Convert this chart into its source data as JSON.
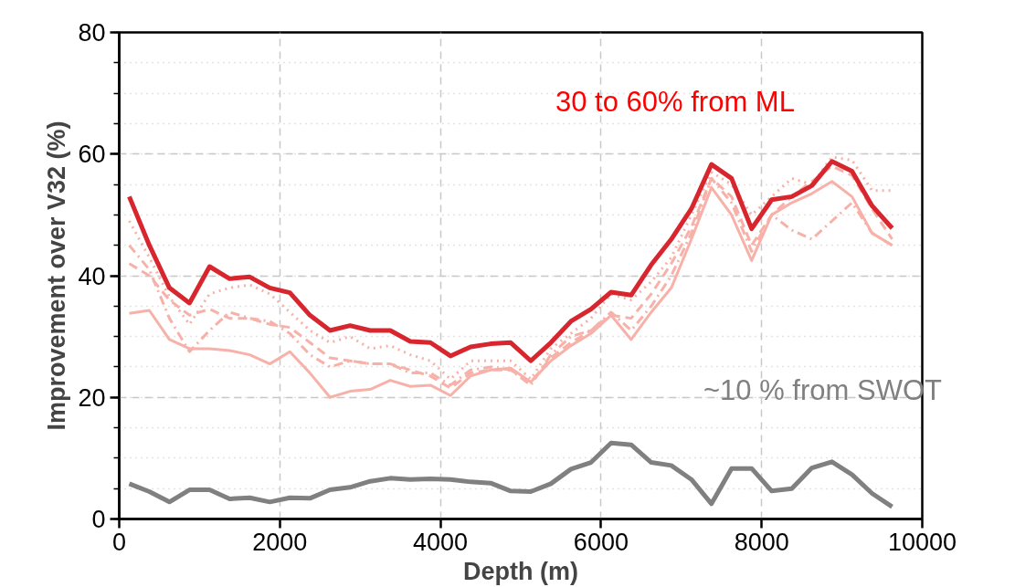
{
  "chart_data": {
    "type": "line",
    "xlabel": "Depth (m)",
    "ylabel": "Improvement over V32 (%)",
    "xlim": [
      0,
      10000
    ],
    "ylim": [
      0,
      80
    ],
    "xticks": [
      0,
      2000,
      4000,
      6000,
      8000,
      10000
    ],
    "yticks": [
      0,
      20,
      40,
      60,
      80
    ],
    "grid": true,
    "x": [
      125,
      375,
      625,
      875,
      1125,
      1375,
      1625,
      1875,
      2125,
      2375,
      2625,
      2875,
      3125,
      3375,
      3625,
      3875,
      4125,
      4375,
      4625,
      4875,
      5125,
      5375,
      5625,
      5875,
      6125,
      6375,
      6625,
      6875,
      7125,
      7375,
      7625,
      7875,
      8125,
      8375,
      8625,
      8875,
      9125,
      9375,
      9625
    ],
    "series": [
      {
        "color": "#f7b1a8",
        "line_style": "solid",
        "values": [
          33.8,
          34.3,
          29.5,
          28,
          28,
          27.7,
          27,
          25.5,
          27.5,
          24,
          20,
          21,
          21.3,
          22.8,
          21.8,
          22,
          20.3,
          23.5,
          24.5,
          24.8,
          22.5,
          26,
          28.5,
          30.5,
          33.5,
          29.5,
          34,
          38,
          46,
          54.5,
          50,
          42.5,
          50,
          52,
          53.5,
          55.5,
          53,
          47,
          45
        ]
      },
      {
        "color": "#f7b1a8",
        "line_style": "dashed",
        "values": [
          42,
          40,
          36,
          33.5,
          34.5,
          33,
          33,
          32,
          31.5,
          29,
          26.5,
          26,
          25.5,
          25.5,
          24.5,
          23.5,
          21.5,
          24,
          24.5,
          24.5,
          22.5,
          26.5,
          29,
          31,
          33.5,
          33,
          37,
          42,
          48,
          56,
          53,
          45,
          50,
          53,
          55.5,
          58,
          56.5,
          51,
          46
        ]
      },
      {
        "color": "#f7b1a8",
        "line_style": "dotted",
        "values": [
          49,
          43,
          36.5,
          32,
          37,
          38,
          38.5,
          37,
          34,
          31,
          29,
          30,
          28,
          28.5,
          27,
          26,
          23,
          26,
          26,
          26,
          23,
          28,
          30.5,
          33,
          37,
          36,
          39,
          43,
          50,
          57,
          55,
          50,
          53,
          56,
          55,
          59.5,
          59,
          54,
          54
        ]
      },
      {
        "color": "#f7b1a8",
        "line_style": "dashdot",
        "values": [
          45,
          41,
          33,
          27.5,
          31,
          34,
          33,
          32.5,
          30.5,
          27,
          25,
          26,
          25.5,
          25.5,
          24,
          24,
          22,
          24.5,
          25,
          24.5,
          22,
          27,
          30,
          31,
          34,
          31,
          35,
          40,
          47,
          56,
          52,
          44,
          50,
          47.5,
          46,
          49,
          52,
          47,
          45
        ]
      },
      {
        "color": "#d7262e",
        "line_style": "solid",
        "values": [
          53,
          45,
          38,
          35.5,
          41.5,
          39.5,
          39.8,
          38,
          37.2,
          33.5,
          31,
          31.8,
          31,
          31,
          29.2,
          29,
          26.8,
          28.3,
          28.8,
          29,
          26,
          29,
          32.5,
          34.5,
          37.3,
          36.8,
          41.8,
          46,
          51,
          58.3,
          56,
          47.7,
          52.5,
          53,
          54.8,
          58.8,
          57.2,
          51.5,
          47.8
        ]
      },
      {
        "color": "#808080",
        "line_style": "solid",
        "values": [
          5.8,
          4.5,
          2.8,
          4.8,
          4.8,
          3.3,
          3.5,
          2.8,
          3.5,
          3.4,
          4.8,
          5.2,
          6.2,
          6.7,
          6.5,
          6.6,
          6.5,
          6.1,
          5.9,
          4.6,
          4.5,
          5.8,
          8.2,
          9.3,
          12.5,
          12.2,
          9.3,
          8.8,
          6.5,
          2.5,
          8.3,
          8.3,
          4.6,
          5.0,
          8.4,
          9.4,
          7.3,
          4.2,
          2.0
        ]
      }
    ],
    "annotations": [
      "30 to 60% from ML",
      "~10 % from SWOT"
    ]
  }
}
